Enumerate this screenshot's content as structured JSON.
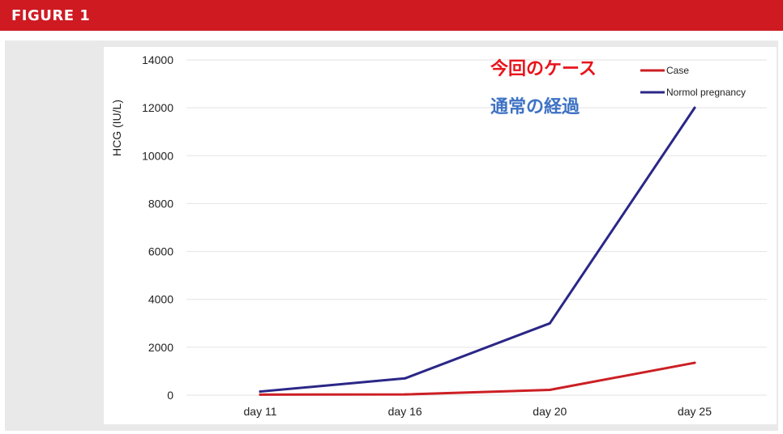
{
  "figure_label": "FIGURE 1",
  "annotations": {
    "case_jp": "今回のケース",
    "normal_jp": "通常の経過"
  },
  "colors": {
    "banner": "#cf1a22",
    "case": "#cc1f24",
    "normal": "#2b2787",
    "case_note": "#e8141c",
    "normal_note": "#3e72c4"
  },
  "chart_data": {
    "type": "line",
    "title": "",
    "xlabel": "",
    "ylabel": "HCG (IU/L)",
    "categories": [
      "day 11",
      "day 16",
      "day 20",
      "day 25"
    ],
    "ylim": [
      0,
      14000
    ],
    "yticks": [
      0,
      2000,
      4000,
      6000,
      8000,
      10000,
      12000,
      14000
    ],
    "grid": true,
    "legend_position": "top-right",
    "series": [
      {
        "name": "Case",
        "values": [
          20,
          30,
          220,
          1350
        ],
        "color": "#cc1f24"
      },
      {
        "name": "Normol pregnancy",
        "values": [
          150,
          700,
          3000,
          12000
        ],
        "color": "#2b2787"
      }
    ]
  }
}
